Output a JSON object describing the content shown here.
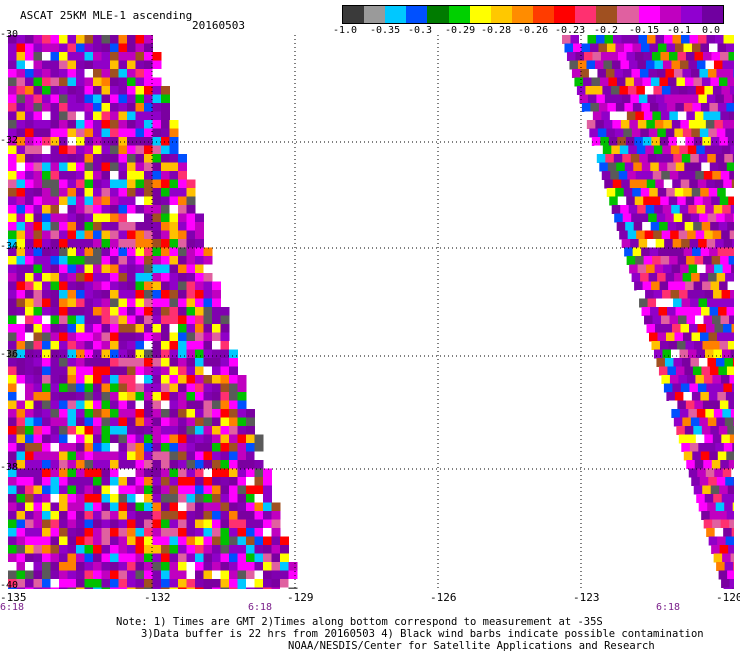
{
  "header": {
    "title": "ASCAT 25KM MLE-1 ascending",
    "date": "20160503"
  },
  "colorbar": {
    "labels": [
      "-1.0",
      "-0.35",
      "-0.3",
      "-0.29",
      "-0.28",
      "-0.26",
      "-0.23",
      "-0.2",
      "-0.15",
      "-0.1",
      "0.0"
    ],
    "colors": [
      "#3a3a3a",
      "#9a9a9a",
      "#00c8ff",
      "#0050ff",
      "#007b00",
      "#00d000",
      "#ffff00",
      "#ffc800",
      "#ff8c00",
      "#ff3c00",
      "#ff0000",
      "#ff3070",
      "#a05020",
      "#e060a0",
      "#ff00ff",
      "#c000c0",
      "#9000d0",
      "#7000a0"
    ]
  },
  "map": {
    "y_ticks": [
      "-30",
      "-32",
      "-34",
      "-36",
      "-38",
      "-40"
    ],
    "x_ticks": [
      "-135",
      "-132",
      "-129",
      "-126",
      "-123",
      "-120"
    ],
    "time_labels": [
      "6:18",
      "6:18",
      "6:18"
    ],
    "swath_palette": [
      "#8000b0",
      "#9000c8",
      "#7a00a0",
      "#ff00ff",
      "#c000c0",
      "#ffff00",
      "#ffc000",
      "#ff8000",
      "#ff0000",
      "#ff3070",
      "#a05020",
      "#00c000",
      "#0050ff",
      "#00c8ff",
      "#e060a0",
      "#ffffff",
      "#5a5a5a"
    ]
  },
  "notes": {
    "line1": "Note: 1) Times are GMT 2)Times along bottom correspond to measurement at -35S",
    "line2": "3)Data buffer is 22 hrs from 20160503 4) Black wind barbs indicate possible contamination",
    "line3": "NOAA/NESDIS/Center for Satellite Applications and Research"
  }
}
